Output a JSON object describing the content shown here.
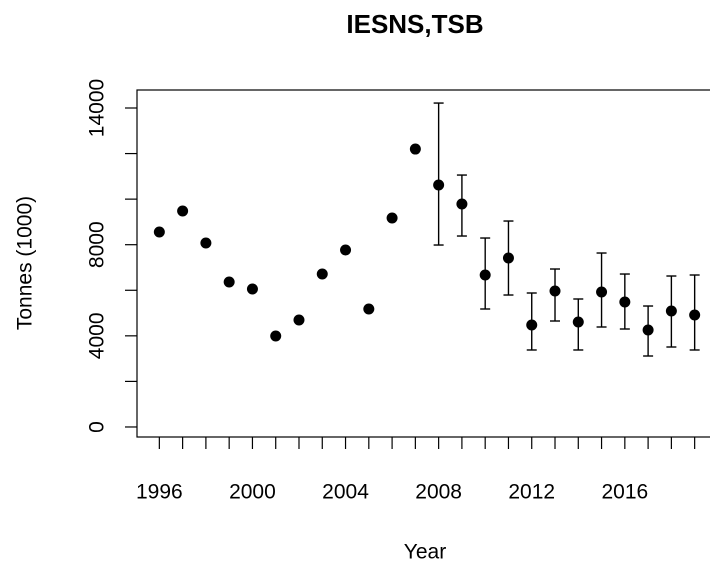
{
  "chart_data": {
    "type": "scatter",
    "title": "IESNS,TSB",
    "x_label": "Year",
    "y_label": "Tonnes (1000)",
    "x": [
      1996,
      1997,
      1998,
      1999,
      2000,
      2001,
      2002,
      2003,
      2004,
      2005,
      2006,
      2007,
      2008,
      2009,
      2010,
      2011,
      2012,
      2013,
      2014,
      2015,
      2016,
      2017,
      2018,
      2019
    ],
    "values": [
      8557,
      9478,
      8074,
      6362,
      6055,
      3993,
      4695,
      6713,
      7767,
      5178,
      9171,
      12198,
      10619,
      9785,
      6670,
      7416,
      4476,
      5968,
      4607,
      5924,
      5485,
      4256,
      5090,
      4914
    ],
    "lower": [
      null,
      null,
      null,
      null,
      null,
      null,
      null,
      null,
      null,
      null,
      null,
      null,
      7986,
      8381,
      5178,
      5792,
      3379,
      4651,
      3379,
      4388,
      4300,
      3115,
      3510,
      3379
    ],
    "upper": [
      null,
      null,
      null,
      null,
      null,
      null,
      null,
      null,
      null,
      null,
      null,
      null,
      14217,
      11057,
      8293,
      9039,
      5880,
      6933,
      5617,
      7635,
      6713,
      5309,
      6626,
      6670
    ],
    "color": "#000000",
    "xlim": [
      1995.04,
      2019.96
    ],
    "ylim": [
      -440,
      14790
    ],
    "xticks": [
      1996,
      {
        "value": 1997,
        "label": null
      },
      {
        "value": 1998,
        "label": null
      },
      {
        "value": 1999,
        "label": null
      },
      2000,
      {
        "value": 2001,
        "label": null
      },
      {
        "value": 2002,
        "label": null
      },
      {
        "value": 2003,
        "label": null
      },
      2004,
      {
        "value": 2005,
        "label": null
      },
      {
        "value": 2006,
        "label": null
      },
      {
        "value": 2007,
        "label": null
      },
      2008,
      {
        "value": 2009,
        "label": null
      },
      {
        "value": 2010,
        "label": null
      },
      {
        "value": 2011,
        "label": null
      },
      2012,
      {
        "value": 2013,
        "label": null
      },
      {
        "value": 2014,
        "label": null
      },
      {
        "value": 2015,
        "label": null
      },
      2016,
      {
        "value": 2017,
        "label": null
      },
      {
        "value": 2018,
        "label": null
      },
      {
        "value": 2019,
        "label": null
      }
    ],
    "yticks": [
      0,
      {
        "value": 2000,
        "label": null
      },
      4000,
      {
        "value": 6000,
        "label": null
      },
      8000,
      {
        "value": 10000,
        "label": null
      },
      {
        "value": 12000,
        "label": null
      },
      14000
    ]
  }
}
